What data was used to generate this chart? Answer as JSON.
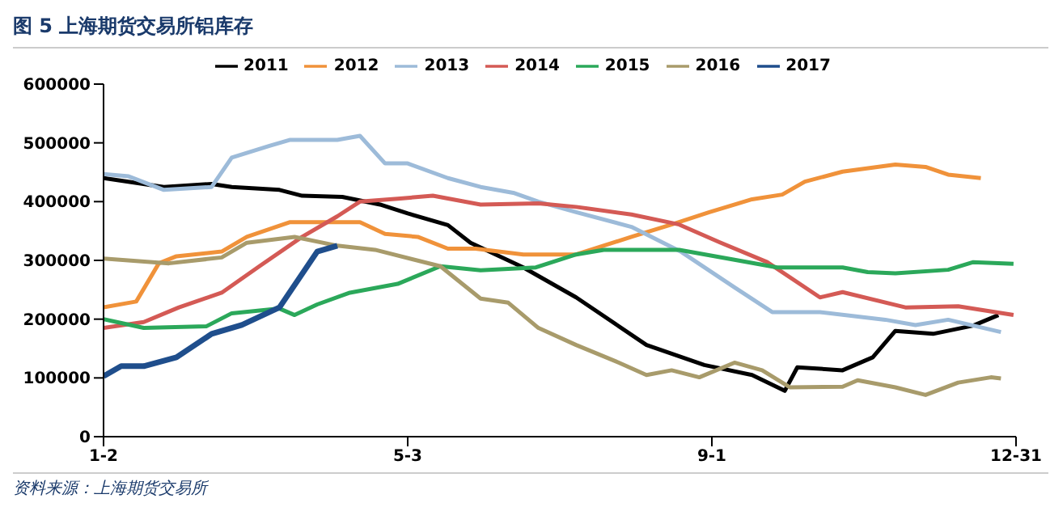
{
  "chart_data": {
    "type": "line",
    "title": "图 5 上海期货交易所铝库存",
    "annotations": [
      "资料来源：上海期货交易所"
    ],
    "xlim": [
      "--01-02",
      "--12-31"
    ],
    "xticks": [
      {
        "value": "--01-02",
        "label": "1-2"
      },
      {
        "value": "--05-03",
        "label": "5-3"
      },
      {
        "value": "--09-01",
        "label": "9-1"
      },
      {
        "value": "--12-31",
        "label": "12-31"
      }
    ],
    "ylim": [
      0,
      600000
    ],
    "yticks": [
      0,
      100000,
      200000,
      300000,
      400000,
      500000,
      600000
    ],
    "legend": "top",
    "marker": "none",
    "line_style": "solid",
    "series": [
      {
        "name": "2011",
        "color": "#000000",
        "x": [
          "--01-02",
          "--01-26",
          "--02-14",
          "--02-22",
          "--03-13",
          "--03-22",
          "--04-07",
          "--04-22",
          "--05-03",
          "--05-19",
          "--05-28",
          "--06-12",
          "--06-18",
          "--07-09",
          "--08-06",
          "--08-29",
          "--09-17",
          "--09-30",
          "--10-05",
          "--10-23",
          "--11-04",
          "--11-13",
          "--11-28",
          "--12-14",
          "--12-24"
        ],
        "values": [
          440000,
          425000,
          430000,
          425000,
          420000,
          410000,
          408000,
          395000,
          380000,
          360000,
          330000,
          300000,
          288000,
          237000,
          156000,
          122000,
          105000,
          78000,
          118000,
          113000,
          135000,
          180000,
          175000,
          189000,
          207000
        ]
      },
      {
        "name": "2012",
        "color": "#f0923a",
        "x": [
          "--01-02",
          "--01-15",
          "--01-24",
          "--01-31",
          "--02-18",
          "--02-28",
          "--03-17",
          "--04-05",
          "--04-14",
          "--04-24",
          "--05-07",
          "--05-19",
          "--05-30",
          "--06-18",
          "--07-09",
          "--07-31",
          "--08-16",
          "--08-31",
          "--09-17",
          "--09-29",
          "--10-08",
          "--10-23",
          "--11-13",
          "--11-25",
          "--12-04",
          "--12-17"
        ],
        "values": [
          220000,
          230000,
          295000,
          307000,
          315000,
          340000,
          365000,
          365000,
          365000,
          345000,
          340000,
          320000,
          320000,
          310000,
          310000,
          340000,
          361000,
          382000,
          404000,
          412000,
          434000,
          451000,
          463000,
          459000,
          446000,
          440000
        ]
      },
      {
        "name": "2013",
        "color": "#9dbbd9",
        "x": [
          "--01-02",
          "--01-12",
          "--01-26",
          "--02-14",
          "--02-22",
          "--03-09",
          "--03-17",
          "--04-05",
          "--04-14",
          "--04-24",
          "--05-03",
          "--05-19",
          "--06-01",
          "--06-14",
          "--06-24",
          "--07-09",
          "--07-31",
          "--08-20",
          "--09-10",
          "--09-25",
          "--10-14",
          "--11-09",
          "--11-21",
          "--12-04",
          "--12-25"
        ],
        "values": [
          447000,
          443000,
          420000,
          425000,
          475000,
          495000,
          505000,
          505000,
          512000,
          465000,
          465000,
          440000,
          425000,
          415000,
          400000,
          382000,
          357000,
          314000,
          254000,
          212000,
          212000,
          199000,
          190000,
          199000,
          178000
        ]
      },
      {
        "name": "2014",
        "color": "#d45a55",
        "x": [
          "--01-02",
          "--01-18",
          "--02-01",
          "--02-18",
          "--03-05",
          "--03-22",
          "--04-05",
          "--04-14",
          "--04-29",
          "--05-13",
          "--06-01",
          "--06-24",
          "--07-09",
          "--07-31",
          "--08-19",
          "--09-04",
          "--09-23",
          "--10-14",
          "--10-23",
          "--11-17",
          "--12-08",
          "--12-30"
        ],
        "values": [
          185000,
          195000,
          220000,
          245000,
          290000,
          340000,
          375000,
          400000,
          405000,
          410000,
          395000,
          397000,
          391000,
          378000,
          361000,
          331000,
          297000,
          237000,
          246000,
          220000,
          222000,
          207000
        ]
      },
      {
        "name": "2015",
        "color": "#2ba85a",
        "x": [
          "--01-02",
          "--01-18",
          "--02-12",
          "--02-22",
          "--03-13",
          "--03-19",
          "--03-28",
          "--04-10",
          "--04-29",
          "--05-16",
          "--06-01",
          "--06-23",
          "--07-09",
          "--07-20",
          "--08-19",
          "--09-10",
          "--09-27",
          "--10-23",
          "--11-02",
          "--11-13",
          "--12-04",
          "--12-14",
          "--12-30"
        ],
        "values": [
          200000,
          185000,
          188000,
          210000,
          218000,
          207000,
          225000,
          245000,
          260000,
          290000,
          283000,
          288000,
          310000,
          318000,
          318000,
          301000,
          288000,
          288000,
          280000,
          278000,
          284000,
          297000,
          294000
        ]
      },
      {
        "name": "2016",
        "color": "#a89b6b",
        "x": [
          "--01-02",
          "--01-28",
          "--02-18",
          "--02-28",
          "--03-19",
          "--04-05",
          "--04-20",
          "--05-16",
          "--06-01",
          "--06-12",
          "--06-24",
          "--07-09",
          "--07-26",
          "--08-06",
          "--08-16",
          "--08-27",
          "--09-10",
          "--09-21",
          "--10-02",
          "--10-23",
          "--10-29",
          "--11-13",
          "--11-25",
          "--12-08",
          "--12-21",
          "--12-25"
        ],
        "values": [
          303000,
          295000,
          305000,
          330000,
          340000,
          325000,
          318000,
          290000,
          235000,
          228000,
          185000,
          156000,
          126000,
          105000,
          113000,
          101000,
          126000,
          113000,
          84000,
          85000,
          96000,
          84000,
          71000,
          92000,
          101000,
          99000
        ]
      },
      {
        "name": "2017",
        "color": "#1f4e8c",
        "x": [
          "--01-02",
          "--01-09",
          "--01-18",
          "--01-31",
          "--02-14",
          "--02-26",
          "--03-13",
          "--03-28",
          "--04-05"
        ],
        "values": [
          103000,
          120000,
          120000,
          135000,
          175000,
          190000,
          220000,
          315000,
          325000
        ]
      }
    ]
  }
}
